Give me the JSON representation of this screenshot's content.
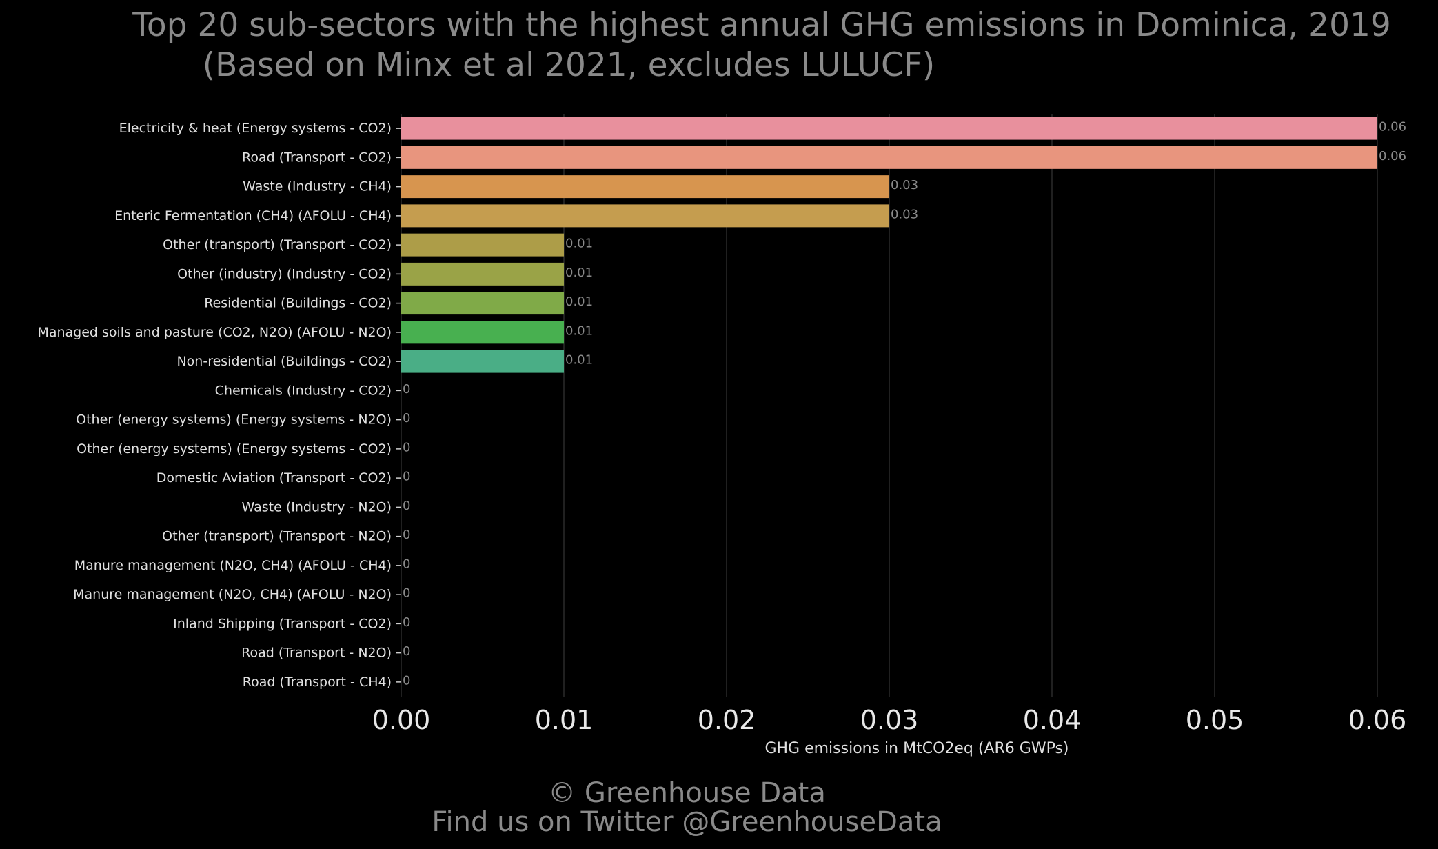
{
  "title_line1": "Top 20 sub-sectors with the highest annual GHG emissions in Dominica, 2019",
  "title_line2": "(Based on Minx et al 2021, excludes LULUCF)",
  "footer_line1": "© Greenhouse Data",
  "footer_line2": "Find us on Twitter @GreenhouseData",
  "chart_data": {
    "type": "bar",
    "orientation": "horizontal",
    "title": "Top 20 sub-sectors with the highest annual GHG emissions in Dominica, 2019 (Based on Minx et al 2021, excludes LULUCF)",
    "xlabel": "GHG emissions in MtCO2eq (AR6 GWPs)",
    "ylabel": "",
    "xlim": [
      0,
      0.06
    ],
    "xticks": [
      "0.00",
      "0.01",
      "0.02",
      "0.03",
      "0.04",
      "0.05",
      "0.06"
    ],
    "grid": "vertical",
    "categories": [
      "Electricity & heat (Energy systems - CO2)",
      "Road (Transport - CO2)",
      "Waste (Industry - CH4)",
      "Enteric Fermentation (CH4) (AFOLU - CH4)",
      "Other (transport) (Transport - CO2)",
      "Other (industry) (Industry - CO2)",
      "Residential (Buildings - CO2)",
      "Managed soils and pasture (CO2, N2O) (AFOLU - N2O)",
      "Non-residential (Buildings - CO2)",
      "Chemicals (Industry - CO2)",
      "Other (energy systems) (Energy systems - N2O)",
      "Other (energy systems) (Energy systems - CO2)",
      "Domestic Aviation (Transport - CO2)",
      "Waste (Industry - N2O)",
      "Other (transport) (Transport - N2O)",
      "Manure management (N2O, CH4) (AFOLU - CH4)",
      "Manure management (N2O, CH4) (AFOLU - N2O)",
      "Inland Shipping (Transport - CO2)",
      "Road (Transport - N2O)",
      "Road (Transport - CH4)"
    ],
    "values": [
      0.06,
      0.06,
      0.03,
      0.03,
      0.01,
      0.01,
      0.01,
      0.01,
      0.01,
      0,
      0,
      0,
      0,
      0,
      0,
      0,
      0,
      0,
      0,
      0
    ],
    "labels": [
      "0.06",
      "0.06",
      "0.03",
      "0.03",
      "0.01",
      "0.01",
      "0.01",
      "0.01",
      "0.01",
      "0",
      "0",
      "0",
      "0",
      "0",
      "0",
      "0",
      "0",
      "0",
      "0",
      "0"
    ],
    "colors": [
      "#e8909d",
      "#e8957e",
      "#d7954f",
      "#c59d4f",
      "#ad9d48",
      "#9aa347",
      "#80aa48",
      "#48b050",
      "#4aae86",
      "#4aae86",
      "#4aae86",
      "#4aae86",
      "#4aae86",
      "#4aae86",
      "#4aae86",
      "#4aae86",
      "#4aae86",
      "#4aae86",
      "#4aae86",
      "#4aae86"
    ]
  }
}
